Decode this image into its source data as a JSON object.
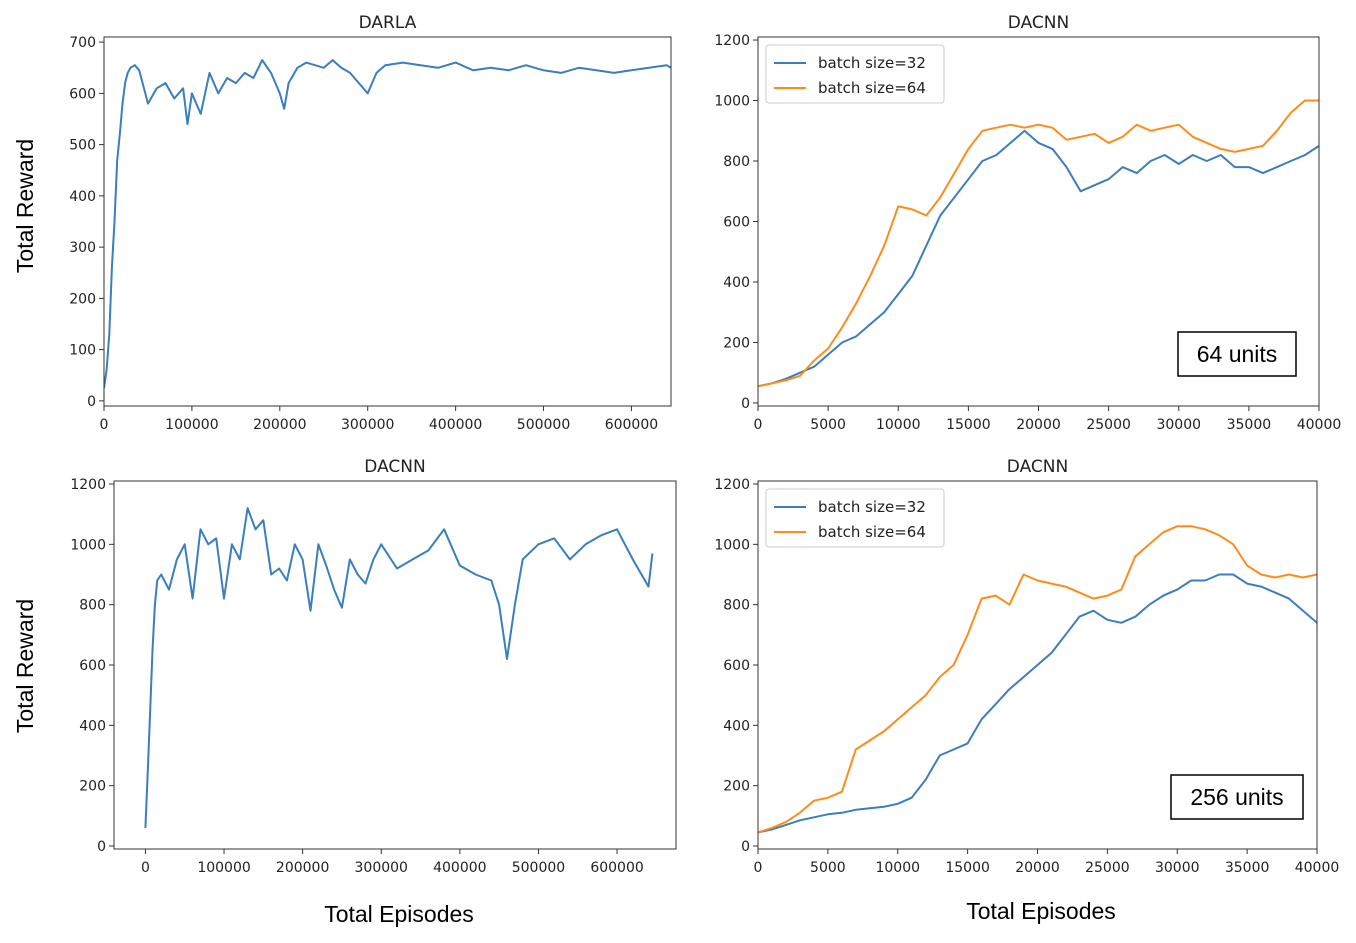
{
  "figure": {
    "ylabel_left": "Total Reward",
    "xlabel_bottom": "Total Episodes",
    "colors": {
      "blue": "#3a7ebf",
      "orange": "#ff8c1a",
      "axis": "#333333"
    }
  },
  "chart_data": [
    {
      "type": "line",
      "title": "DARLA",
      "xlim": [
        0,
        645000
      ],
      "ylim": [
        -10,
        710
      ],
      "xticks": [
        0,
        100000,
        200000,
        300000,
        400000,
        500000,
        600000
      ],
      "yticks": [
        0,
        100,
        200,
        300,
        400,
        500,
        600,
        700
      ],
      "legend": null,
      "annotation": null,
      "series": [
        {
          "color": "#3a7ebf",
          "x": [
            0,
            3000,
            6000,
            9000,
            12000,
            15000,
            18000,
            21000,
            24000,
            27000,
            30000,
            35000,
            40000,
            50000,
            60000,
            70000,
            80000,
            90000,
            95000,
            100000,
            110000,
            120000,
            130000,
            140000,
            150000,
            160000,
            170000,
            180000,
            190000,
            200000,
            205000,
            210000,
            220000,
            230000,
            240000,
            250000,
            260000,
            270000,
            280000,
            290000,
            300000,
            310000,
            320000,
            340000,
            360000,
            380000,
            400000,
            420000,
            440000,
            460000,
            480000,
            500000,
            520000,
            540000,
            560000,
            580000,
            600000,
            620000,
            640000,
            645000
          ],
          "y": [
            25,
            60,
            130,
            260,
            350,
            470,
            520,
            580,
            620,
            640,
            650,
            655,
            645,
            580,
            610,
            620,
            590,
            610,
            540,
            600,
            560,
            640,
            600,
            630,
            620,
            640,
            630,
            665,
            640,
            600,
            570,
            620,
            650,
            660,
            655,
            650,
            665,
            650,
            640,
            620,
            600,
            640,
            655,
            660,
            655,
            650,
            660,
            645,
            650,
            645,
            655,
            645,
            640,
            650,
            645,
            640,
            645,
            650,
            655,
            650
          ]
        }
      ]
    },
    {
      "type": "line",
      "title": "DACNN",
      "xlim": [
        0,
        40000
      ],
      "ylim": [
        -10,
        1210
      ],
      "xticks": [
        0,
        5000,
        10000,
        15000,
        20000,
        25000,
        30000,
        35000,
        40000
      ],
      "yticks": [
        0,
        200,
        400,
        600,
        800,
        1000,
        1200
      ],
      "legend": {
        "placement": "top-left",
        "entries": [
          "batch size=32",
          "batch size=64"
        ]
      },
      "annotation": "64 units",
      "series": [
        {
          "name": "batch size=32",
          "color": "#3a7ebf",
          "x": [
            0,
            1000,
            2000,
            3000,
            4000,
            5000,
            6000,
            7000,
            8000,
            9000,
            10000,
            11000,
            12000,
            13000,
            14000,
            15000,
            16000,
            17000,
            18000,
            19000,
            20000,
            21000,
            22000,
            23000,
            24000,
            25000,
            26000,
            27000,
            28000,
            29000,
            30000,
            31000,
            32000,
            33000,
            34000,
            35000,
            36000,
            37000,
            38000,
            39000,
            40000
          ],
          "y": [
            55,
            65,
            80,
            100,
            120,
            160,
            200,
            220,
            260,
            300,
            360,
            420,
            520,
            620,
            680,
            740,
            800,
            820,
            860,
            900,
            860,
            840,
            780,
            700,
            720,
            740,
            780,
            760,
            800,
            820,
            790,
            820,
            800,
            820,
            780,
            780,
            760,
            780,
            800,
            820,
            850
          ]
        },
        {
          "name": "batch size=64",
          "color": "#ff8c1a",
          "x": [
            0,
            1000,
            2000,
            3000,
            4000,
            5000,
            6000,
            7000,
            8000,
            9000,
            10000,
            11000,
            12000,
            13000,
            14000,
            15000,
            16000,
            17000,
            18000,
            19000,
            20000,
            21000,
            22000,
            23000,
            24000,
            25000,
            26000,
            27000,
            28000,
            29000,
            30000,
            31000,
            32000,
            33000,
            34000,
            35000,
            36000,
            37000,
            38000,
            39000,
            40000
          ],
          "y": [
            55,
            65,
            75,
            90,
            140,
            180,
            250,
            330,
            420,
            520,
            650,
            640,
            620,
            680,
            760,
            840,
            900,
            910,
            920,
            910,
            920,
            910,
            870,
            880,
            890,
            860,
            880,
            920,
            900,
            910,
            920,
            880,
            860,
            840,
            830,
            840,
            850,
            900,
            960,
            1000,
            1000
          ]
        }
      ]
    },
    {
      "type": "line",
      "title": "DACNN",
      "xlim": [
        -40000,
        675000
      ],
      "ylim": [
        -10,
        1210
      ],
      "xticks": [
        0,
        100000,
        200000,
        300000,
        400000,
        500000,
        600000
      ],
      "yticks": [
        0,
        200,
        400,
        600,
        800,
        1000,
        1200
      ],
      "legend": null,
      "annotation": null,
      "series": [
        {
          "color": "#3a7ebf",
          "x": [
            0,
            3000,
            6000,
            9000,
            12000,
            15000,
            20000,
            30000,
            40000,
            50000,
            60000,
            70000,
            80000,
            90000,
            100000,
            110000,
            120000,
            130000,
            140000,
            150000,
            160000,
            170000,
            180000,
            190000,
            200000,
            210000,
            220000,
            230000,
            240000,
            250000,
            260000,
            270000,
            280000,
            290000,
            300000,
            320000,
            340000,
            360000,
            380000,
            400000,
            420000,
            440000,
            450000,
            460000,
            470000,
            480000,
            500000,
            520000,
            540000,
            560000,
            580000,
            600000,
            620000,
            640000,
            645000
          ],
          "y": [
            60,
            250,
            450,
            650,
            800,
            880,
            900,
            850,
            950,
            1000,
            820,
            1050,
            1000,
            1020,
            820,
            1000,
            950,
            1120,
            1050,
            1080,
            900,
            920,
            880,
            1000,
            950,
            780,
            1000,
            930,
            850,
            790,
            950,
            900,
            870,
            950,
            1000,
            920,
            950,
            980,
            1050,
            930,
            900,
            880,
            800,
            620,
            800,
            950,
            1000,
            1020,
            950,
            1000,
            1030,
            1050,
            950,
            860,
            970
          ]
        }
      ]
    },
    {
      "type": "line",
      "title": "DACNN",
      "xlim": [
        0,
        40000
      ],
      "ylim": [
        -10,
        1210
      ],
      "xticks": [
        0,
        5000,
        10000,
        15000,
        20000,
        25000,
        30000,
        35000,
        40000
      ],
      "yticks": [
        0,
        200,
        400,
        600,
        800,
        1000,
        1200
      ],
      "legend": {
        "placement": "top-left",
        "entries": [
          "batch size=32",
          "batch size=64"
        ]
      },
      "annotation": "256 units",
      "series": [
        {
          "name": "batch size=32",
          "color": "#3a7ebf",
          "x": [
            0,
            1000,
            2000,
            3000,
            4000,
            5000,
            6000,
            7000,
            8000,
            9000,
            10000,
            11000,
            12000,
            13000,
            14000,
            15000,
            16000,
            17000,
            18000,
            19000,
            20000,
            21000,
            22000,
            23000,
            24000,
            25000,
            26000,
            27000,
            28000,
            29000,
            30000,
            31000,
            32000,
            33000,
            34000,
            35000,
            36000,
            37000,
            38000,
            39000,
            40000
          ],
          "y": [
            45,
            55,
            70,
            85,
            95,
            105,
            110,
            120,
            125,
            130,
            140,
            160,
            220,
            300,
            320,
            340,
            420,
            470,
            520,
            560,
            600,
            640,
            700,
            760,
            780,
            750,
            740,
            760,
            800,
            830,
            850,
            880,
            880,
            900,
            900,
            870,
            860,
            840,
            820,
            780,
            740
          ]
        },
        {
          "name": "batch size=64",
          "color": "#ff8c1a",
          "x": [
            0,
            1000,
            2000,
            3000,
            4000,
            5000,
            6000,
            7000,
            8000,
            9000,
            10000,
            11000,
            12000,
            13000,
            14000,
            15000,
            16000,
            17000,
            18000,
            19000,
            20000,
            21000,
            22000,
            23000,
            24000,
            25000,
            26000,
            27000,
            28000,
            29000,
            30000,
            31000,
            32000,
            33000,
            34000,
            35000,
            36000,
            37000,
            38000,
            39000,
            40000
          ],
          "y": [
            45,
            60,
            80,
            110,
            150,
            160,
            180,
            320,
            350,
            380,
            420,
            460,
            500,
            560,
            600,
            700,
            820,
            830,
            800,
            900,
            880,
            870,
            860,
            840,
            820,
            830,
            850,
            960,
            1000,
            1040,
            1060,
            1060,
            1050,
            1030,
            1000,
            930,
            900,
            890,
            900,
            890,
            900
          ]
        }
      ]
    }
  ]
}
